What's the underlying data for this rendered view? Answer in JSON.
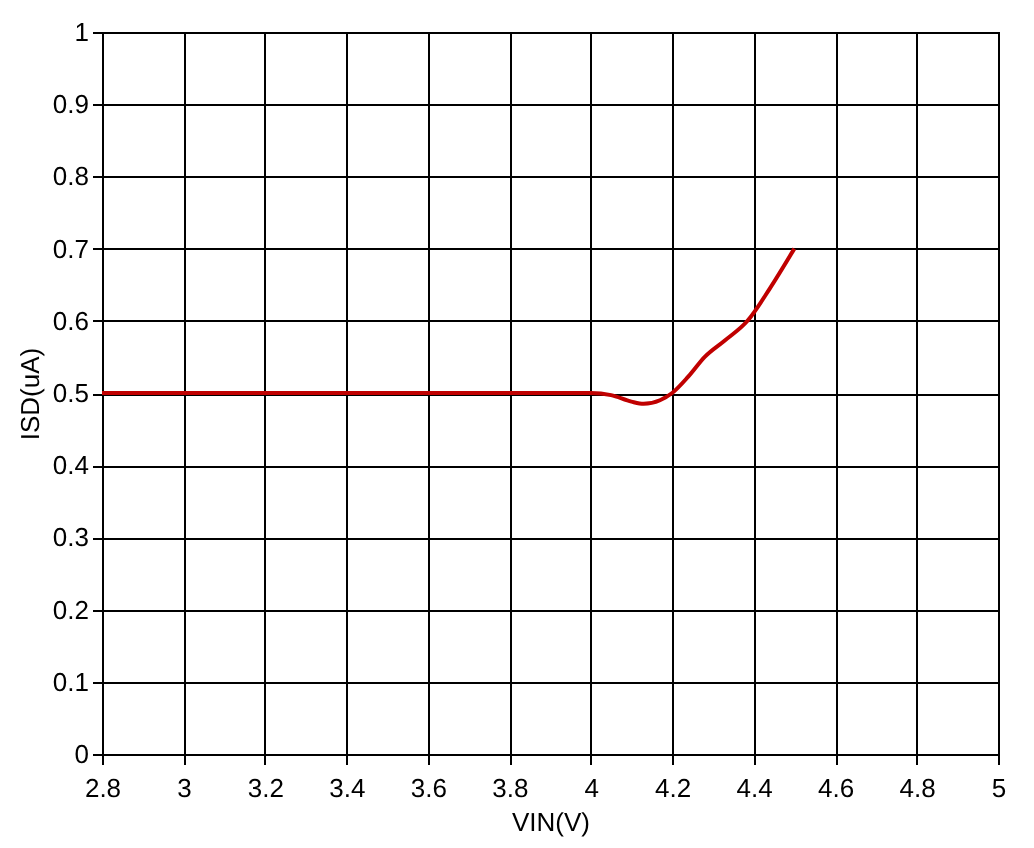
{
  "chart_data": {
    "type": "line",
    "xlabel": "VIN(V)",
    "ylabel": "ISD(uA)",
    "series": [
      {
        "color": "#c00000",
        "x": [
          2.8,
          3.0,
          3.5,
          4.0,
          4.05,
          4.1,
          4.13,
          4.17,
          4.2,
          4.24,
          4.28,
          4.33,
          4.385,
          4.44,
          4.5
        ],
        "values": [
          0.5,
          0.5,
          0.5,
          0.5,
          0.497,
          0.488,
          0.485,
          0.49,
          0.5,
          0.523,
          0.55,
          0.573,
          0.6,
          0.645,
          0.7
        ]
      }
    ],
    "xlim": [
      2.8,
      5
    ],
    "xticks": [
      2.8,
      3,
      3.2,
      3.4,
      3.6,
      3.8,
      4,
      4.2,
      4.4,
      4.6,
      4.8,
      5
    ],
    "ylim": [
      0,
      1
    ],
    "yticks": [
      0,
      0.1,
      0.2,
      0.3,
      0.4,
      0.5,
      0.6,
      0.7,
      0.8,
      0.9,
      1
    ],
    "grid": true,
    "line_style": "solid"
  }
}
